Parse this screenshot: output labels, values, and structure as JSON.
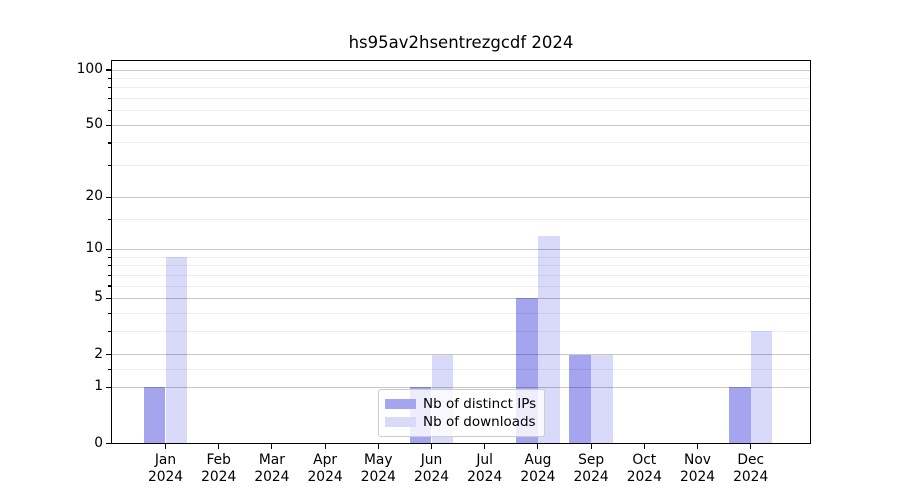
{
  "title": "hs95av2hsentrezgcdf 2024",
  "chart_data": {
    "type": "bar",
    "title": "hs95av2hsentrezgcdf 2024",
    "x_categories": [
      "Jan",
      "Feb",
      "Mar",
      "Apr",
      "May",
      "Jun",
      "Jul",
      "Aug",
      "Sep",
      "Oct",
      "Nov",
      "Dec"
    ],
    "x_year": "2024",
    "series": [
      {
        "name": "Nb of distinct IPs",
        "color": "#a4a4ef",
        "values": [
          1,
          0,
          0,
          0,
          0,
          1,
          0,
          5,
          2,
          0,
          0,
          1
        ]
      },
      {
        "name": "Nb of downloads",
        "color": "#d9d9fa",
        "values": [
          9,
          0,
          0,
          0,
          0,
          2,
          0,
          12,
          2,
          0,
          0,
          3
        ]
      }
    ],
    "yscale": "log1p",
    "ylim": [
      0,
      114
    ],
    "yticks": [
      0,
      1,
      2,
      5,
      10,
      20,
      50,
      100
    ],
    "yticks_minor": [
      1.5,
      3,
      4,
      6,
      7,
      8,
      9,
      15,
      30,
      40,
      60,
      70,
      80,
      90
    ],
    "grid": true,
    "legend_position": "lower center",
    "colors": {
      "spine": "#000000",
      "grid_major": "#c9c9c9",
      "grid_minor": "#ededed",
      "legend_border": "#cccccc"
    }
  }
}
